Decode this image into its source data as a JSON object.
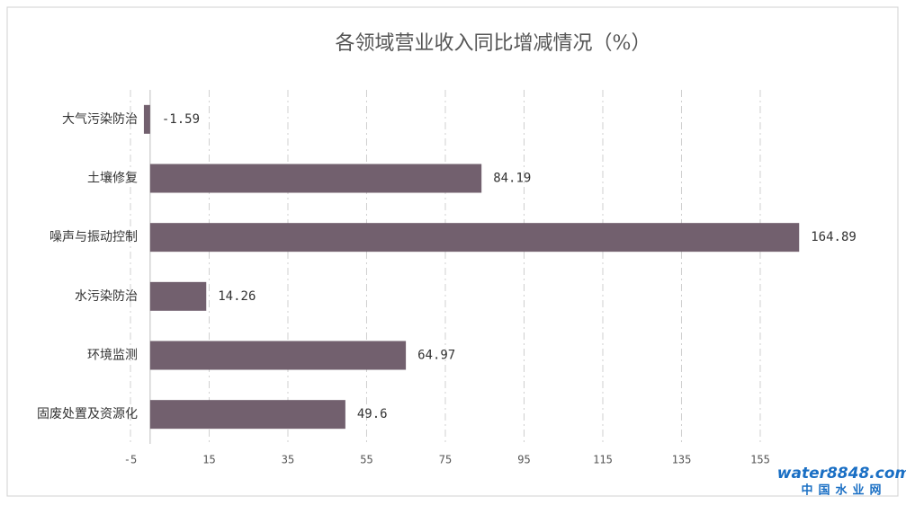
{
  "chart_data": {
    "type": "barh",
    "title": "各领域营业收入同比增减情况（%）",
    "categories": [
      "大气污染防治",
      "土壤修复",
      "噪声与振动控制",
      "水污染防治",
      "环境监测",
      "固废处置及资源化"
    ],
    "values": [
      -1.59,
      84.19,
      164.89,
      14.26,
      64.97,
      49.6
    ],
    "color": "#72606e",
    "xlim": [
      -5,
      170
    ],
    "xticks": [
      -5,
      15,
      35,
      55,
      75,
      95,
      115,
      135,
      155
    ],
    "grid": true
  },
  "watermark": [
    "water8848.com",
    "中国水业网"
  ]
}
